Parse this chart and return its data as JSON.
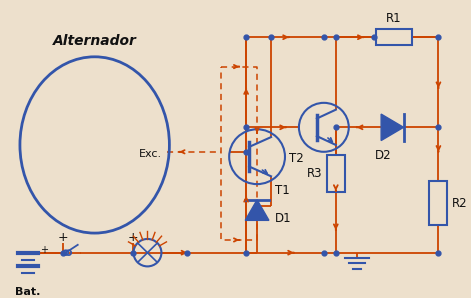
{
  "bg_color": "#ede0cc",
  "wire_color": "#cc4400",
  "component_color": "#3355aa",
  "dashed_color": "#cc4400",
  "labels": {
    "alternador": "Alternador",
    "exc": "Exc.",
    "bat": "Bat.",
    "T1": "T1",
    "T2": "T2",
    "D1": "D1",
    "D2": "D2",
    "R1": "R1",
    "R2": "R2",
    "R3": "R3"
  },
  "figsize": [
    4.71,
    2.98
  ],
  "dpi": 100
}
